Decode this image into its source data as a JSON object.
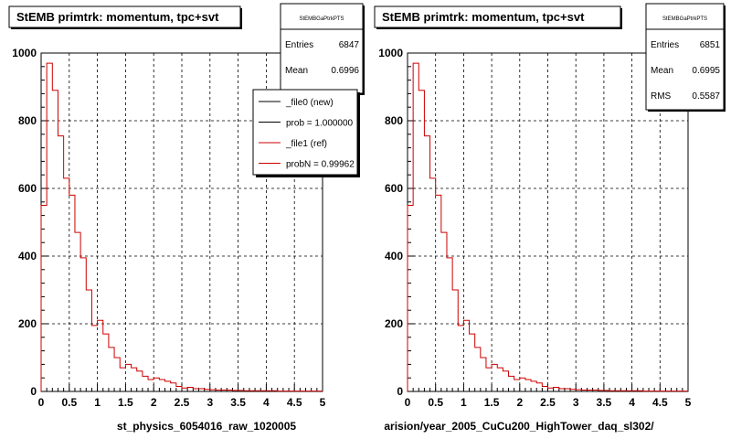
{
  "footer": {
    "text": ""
  },
  "panels": [
    {
      "title": "StEMB primtrk: momentum, tpc+svt",
      "stats": {
        "name": "StEMBGaPtrkPTS",
        "rows": [
          {
            "label": "Entries",
            "value": "6847"
          },
          {
            "label": "Mean",
            "value": "0.6996"
          }
        ]
      },
      "legend": {
        "entries": [
          {
            "label": "_file0 (new)",
            "color": "#000000"
          },
          {
            "label": "prob = 1.000000",
            "color": "#000000"
          },
          {
            "label": "_file1 (ref)",
            "color": "#cc0000"
          },
          {
            "label": "probN = 0.99962",
            "color": "#cc0000"
          }
        ]
      },
      "xlabel": "st_physics_6054016_raw_1020005"
    },
    {
      "title": "StEMB primtrk: momentum, tpc+svt",
      "stats": {
        "name": "StEMBGaPtrkPTS",
        "rows": [
          {
            "label": "Entries",
            "value": "6851"
          },
          {
            "label": "Mean",
            "value": "0.6995"
          },
          {
            "label": "RMS",
            "value": "0.5587"
          }
        ]
      },
      "legend": null,
      "xlabel": "arision/year_2005_CuCu200_HighTower_daq_sl302/"
    }
  ],
  "chart_data": [
    {
      "type": "bar",
      "title": "StEMB primtrk: momentum, tpc+svt",
      "xlabel": "st_physics_6054016_raw_1020005",
      "xlim": [
        0,
        5
      ],
      "ylim": [
        0,
        1000
      ],
      "grid": true,
      "x_ticks": [
        "0",
        "0.5",
        "1",
        "1.5",
        "2",
        "2.5",
        "3",
        "3.5",
        "4",
        "4.5",
        "5"
      ],
      "y_ticks": [
        "0",
        "200",
        "400",
        "600",
        "800",
        "1000"
      ],
      "bin_width": 0.1,
      "series": [
        {
          "name": "_file1 (ref)",
          "color": "#cc0000",
          "values": [
            550,
            970,
            890,
            755,
            630,
            580,
            470,
            395,
            300,
            195,
            210,
            170,
            130,
            100,
            70,
            80,
            70,
            60,
            45,
            35,
            40,
            35,
            30,
            25,
            15,
            10,
            12,
            8,
            8,
            6,
            5,
            4,
            4,
            4,
            3,
            3,
            2,
            2,
            2,
            2,
            2,
            2,
            1,
            1,
            1,
            1,
            1,
            1,
            1,
            1
          ]
        }
      ]
    },
    {
      "type": "bar",
      "title": "StEMB primtrk: momentum, tpc+svt",
      "xlabel": "arision/year_2005_CuCu200_HighTower_daq_sl302/",
      "xlim": [
        0,
        5
      ],
      "ylim": [
        0,
        1000
      ],
      "grid": true,
      "x_ticks": [
        "0",
        "0.5",
        "1",
        "1.5",
        "2",
        "2.5",
        "3",
        "3.5",
        "4",
        "4.5",
        "5"
      ],
      "y_ticks": [
        "0",
        "200",
        "400",
        "600",
        "800",
        "1000"
      ],
      "bin_width": 0.1,
      "series": [
        {
          "color": "#cc0000",
          "values": [
            550,
            970,
            890,
            755,
            630,
            580,
            470,
            395,
            300,
            195,
            210,
            170,
            130,
            100,
            70,
            80,
            70,
            60,
            45,
            35,
            40,
            35,
            30,
            25,
            15,
            10,
            12,
            8,
            8,
            6,
            5,
            4,
            4,
            4,
            3,
            3,
            2,
            2,
            2,
            2,
            2,
            2,
            1,
            1,
            1,
            1,
            1,
            1,
            1,
            1
          ]
        }
      ]
    }
  ]
}
